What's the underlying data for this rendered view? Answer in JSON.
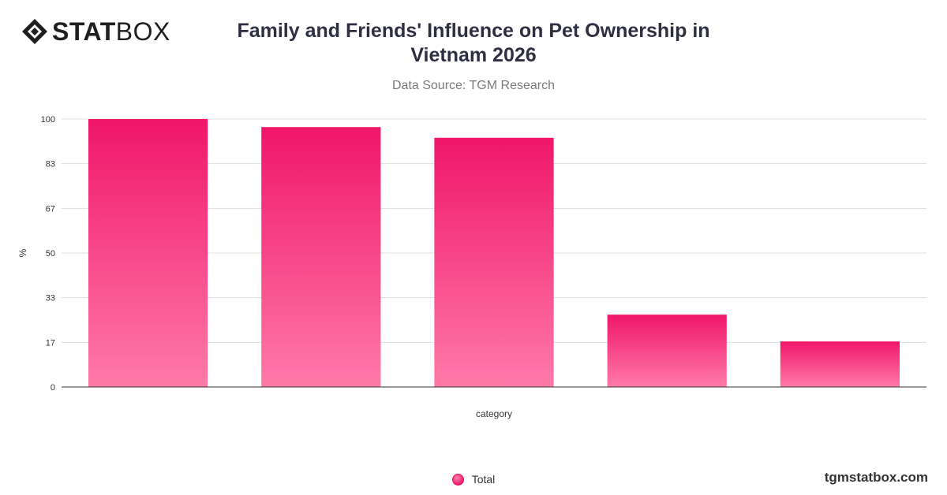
{
  "brand": {
    "logo_text_bold": "STAT",
    "logo_text_light": "BOX",
    "logo_icon": "diamond-icon",
    "footer_url": "tgmstatbox.com"
  },
  "header": {
    "title": "Family and Friends' Influence on Pet Ownership in Vietnam 2026",
    "subtitle": "Data Source: TGM Research"
  },
  "colors": {
    "bar_top": "#f0166a",
    "bar_bottom": "#ff7aa8",
    "grid": "#dddddd",
    "axis": "#333333"
  },
  "chart_data": {
    "type": "bar",
    "categories": [
      "",
      "",
      "",
      "",
      ""
    ],
    "series": [
      {
        "name": "Total",
        "values": [
          100,
          97,
          93,
          27,
          17
        ]
      }
    ],
    "xlabel": "category",
    "ylabel": "%",
    "ylim": [
      0,
      100
    ],
    "yticks": [
      "0",
      "17",
      "33",
      "50",
      "67",
      "83",
      "100"
    ],
    "ytick_values": [
      0,
      16.67,
      33.33,
      50,
      66.67,
      83.33,
      100
    ],
    "grid": true,
    "legend_position": "bottom-center"
  }
}
